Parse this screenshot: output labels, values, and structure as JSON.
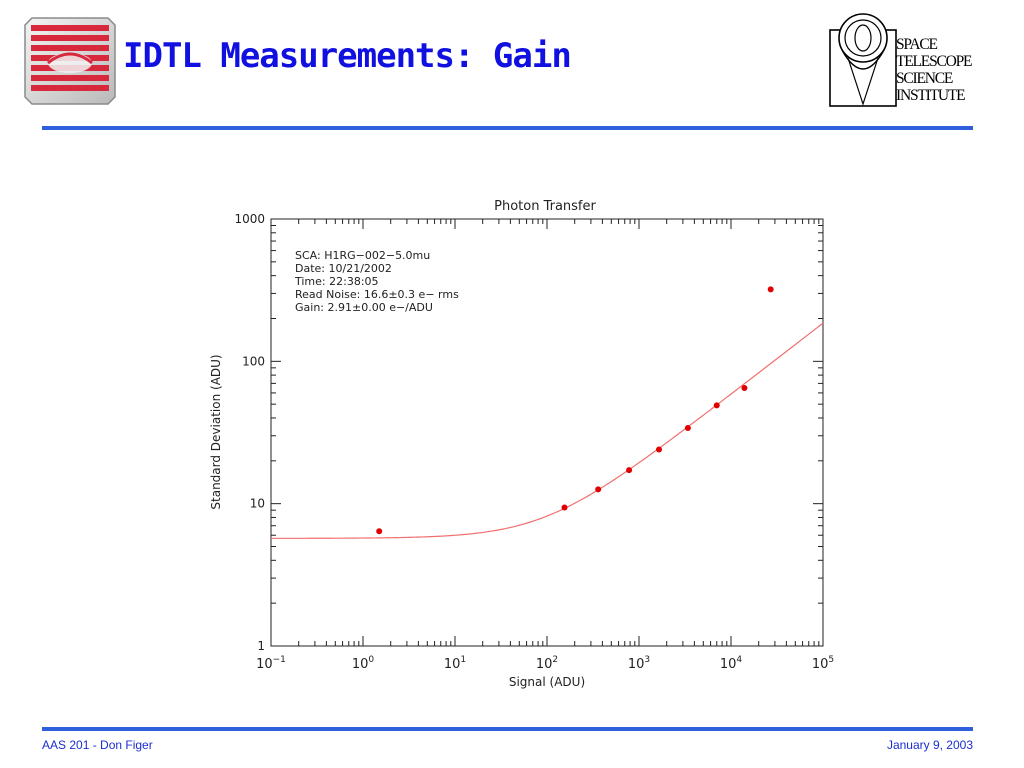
{
  "slide": {
    "title": "IDTL Measurements: Gain",
    "footer_left": "AAS 201 - Don Figer",
    "footer_right": "January 9, 2003",
    "logo_right_lines": [
      "SPACE",
      "TELESCOPE",
      "SCIENCE",
      "INSTITUTE"
    ]
  },
  "colors": {
    "title": "#1010e0",
    "rule": "#2f5fdc",
    "data_point": "#e00000",
    "fit_line": "#f07070",
    "logo_red": "#d8283c"
  },
  "chart_data": {
    "type": "scatter",
    "title": "Photon Transfer",
    "xlabel": "Signal (ADU)",
    "ylabel": "Standard Deviation (ADU)",
    "xscale": "log",
    "yscale": "log",
    "xlim": [
      0.1,
      100000
    ],
    "ylim": [
      1,
      1000
    ],
    "x_ticks": [
      {
        "value": 0.1,
        "base": "10",
        "exp": "−1"
      },
      {
        "value": 1,
        "base": "10",
        "exp": "0"
      },
      {
        "value": 10,
        "base": "10",
        "exp": "1"
      },
      {
        "value": 100,
        "base": "10",
        "exp": "2"
      },
      {
        "value": 1000,
        "base": "10",
        "exp": "3"
      },
      {
        "value": 10000,
        "base": "10",
        "exp": "4"
      },
      {
        "value": 100000,
        "base": "10",
        "exp": "5"
      }
    ],
    "y_ticks": [
      {
        "value": 1,
        "label": "1"
      },
      {
        "value": 10,
        "label": "10"
      },
      {
        "value": 100,
        "label": "100"
      },
      {
        "value": 1000,
        "label": "1000"
      }
    ],
    "annotations": [
      "SCA: H1RG−002−5.0mu",
      "Date: 10/21/2002",
      "Time: 22:38:05",
      "Read Noise: 16.6±0.3 e− rms",
      "Gain: 2.91±0.00 e−/ADU"
    ],
    "series": [
      {
        "kind": "points",
        "x": [
          1.5,
          155,
          360,
          780,
          1650,
          3400,
          7000,
          14000,
          27000
        ],
        "y": [
          6.4,
          9.4,
          12.6,
          17.2,
          24,
          34,
          49,
          65,
          320
        ]
      },
      {
        "kind": "fit",
        "gain": 2.91,
        "read_noise": 16.6
      }
    ],
    "grid": false,
    "legend": "none"
  }
}
